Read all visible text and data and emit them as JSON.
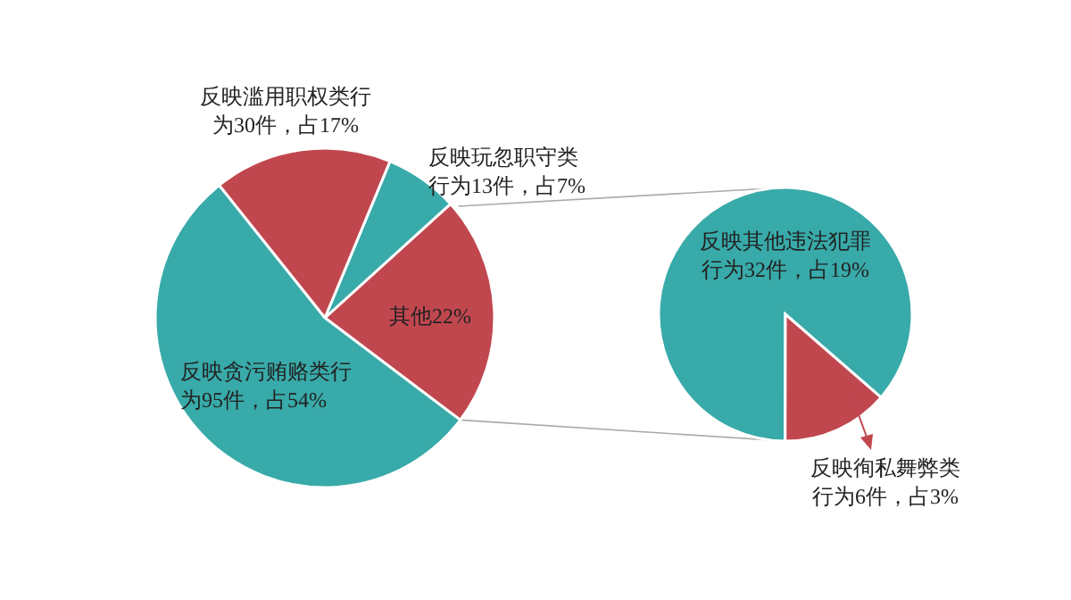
{
  "chart_data": [
    {
      "type": "pie",
      "categories": [
        "其他22%",
        "反映玩忽职守类行为13件，占7%",
        "反映滥用职权类行为30件，占17%",
        "反映贪污贿赂类行为95件，占54%"
      ],
      "values": [
        22,
        7,
        17,
        54
      ],
      "colors": [
        "#c1474f",
        "#38aaa9",
        "#c1474f",
        "#38aaa9"
      ]
    },
    {
      "type": "pie",
      "categories": [
        "反映其他违法犯罪行为32件，占19%",
        "反映徇私舞弊类行为6件，占3%"
      ],
      "values": [
        19,
        3
      ],
      "colors": [
        "#38aaa9",
        "#c1474f"
      ]
    }
  ]
}
